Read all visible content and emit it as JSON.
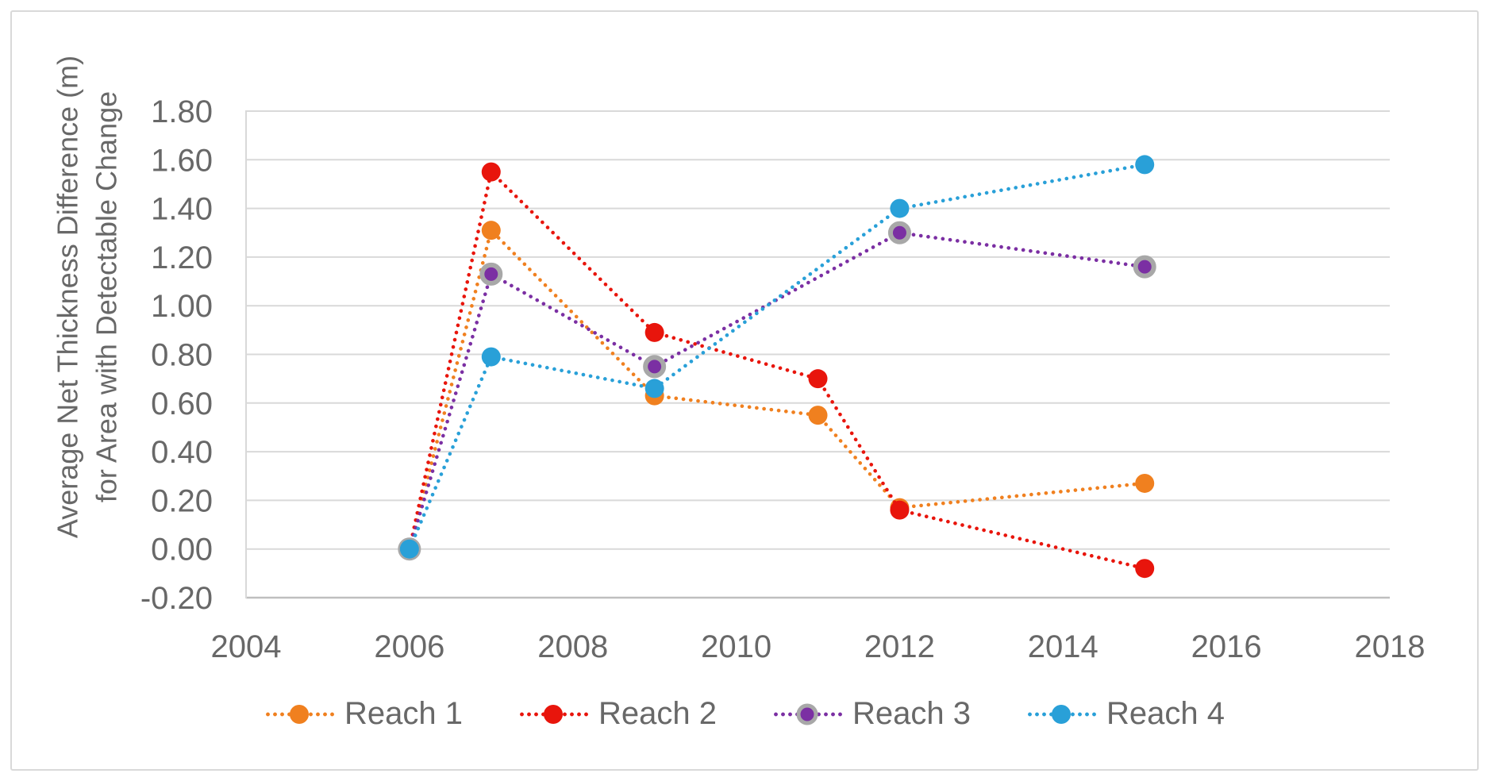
{
  "chart_data": {
    "type": "line",
    "title": "",
    "xlabel": "",
    "ylabel": "Average Net Thickness Difference (m) for Area with Detectable Change",
    "ylabel_lines": [
      "Average Net Thickness Difference (m)",
      "for Area with Detectable Change"
    ],
    "xlim": [
      2004,
      2018
    ],
    "ylim": [
      -0.2,
      1.8
    ],
    "x_tick_labels": [
      "2004",
      "2006",
      "2008",
      "2010",
      "2012",
      "2014",
      "2016",
      "2018"
    ],
    "y_tick_labels": [
      "1.80",
      "1.60",
      "1.40",
      "1.20",
      "1.00",
      "0.80",
      "0.60",
      "0.40",
      "0.20",
      "0.00",
      "-0.20"
    ],
    "grid": true,
    "line_style": "dotted",
    "legend_position": "bottom",
    "series": [
      {
        "name": "Reach 1",
        "color": "#F0801F",
        "x": [
          2006,
          2007,
          2009,
          2011,
          2012,
          2015
        ],
        "y": [
          0.0,
          1.31,
          0.63,
          0.55,
          0.17,
          0.27
        ]
      },
      {
        "name": "Reach 2",
        "color": "#E8150C",
        "x": [
          2006,
          2007,
          2009,
          2011,
          2012,
          2015
        ],
        "y": [
          0.0,
          1.55,
          0.89,
          0.7,
          0.16,
          -0.08
        ]
      },
      {
        "name": "Reach 3",
        "color": "#7B2FA3",
        "marker_outline": "#A8A8A8",
        "x": [
          2006,
          2007,
          2009,
          2012,
          2015
        ],
        "y": [
          0.0,
          1.13,
          0.75,
          1.3,
          1.16
        ]
      },
      {
        "name": "Reach 4",
        "color": "#29A0D8",
        "x": [
          2006,
          2007,
          2009,
          2012,
          2015
        ],
        "y": [
          0.0,
          0.79,
          0.66,
          1.4,
          1.58
        ]
      }
    ],
    "colors": {
      "gridline": "#D9D9D9",
      "axis_line": "#BFBFBF",
      "text": "#686868",
      "background": "#FFFFFF",
      "border": "#D9D9D9"
    }
  }
}
